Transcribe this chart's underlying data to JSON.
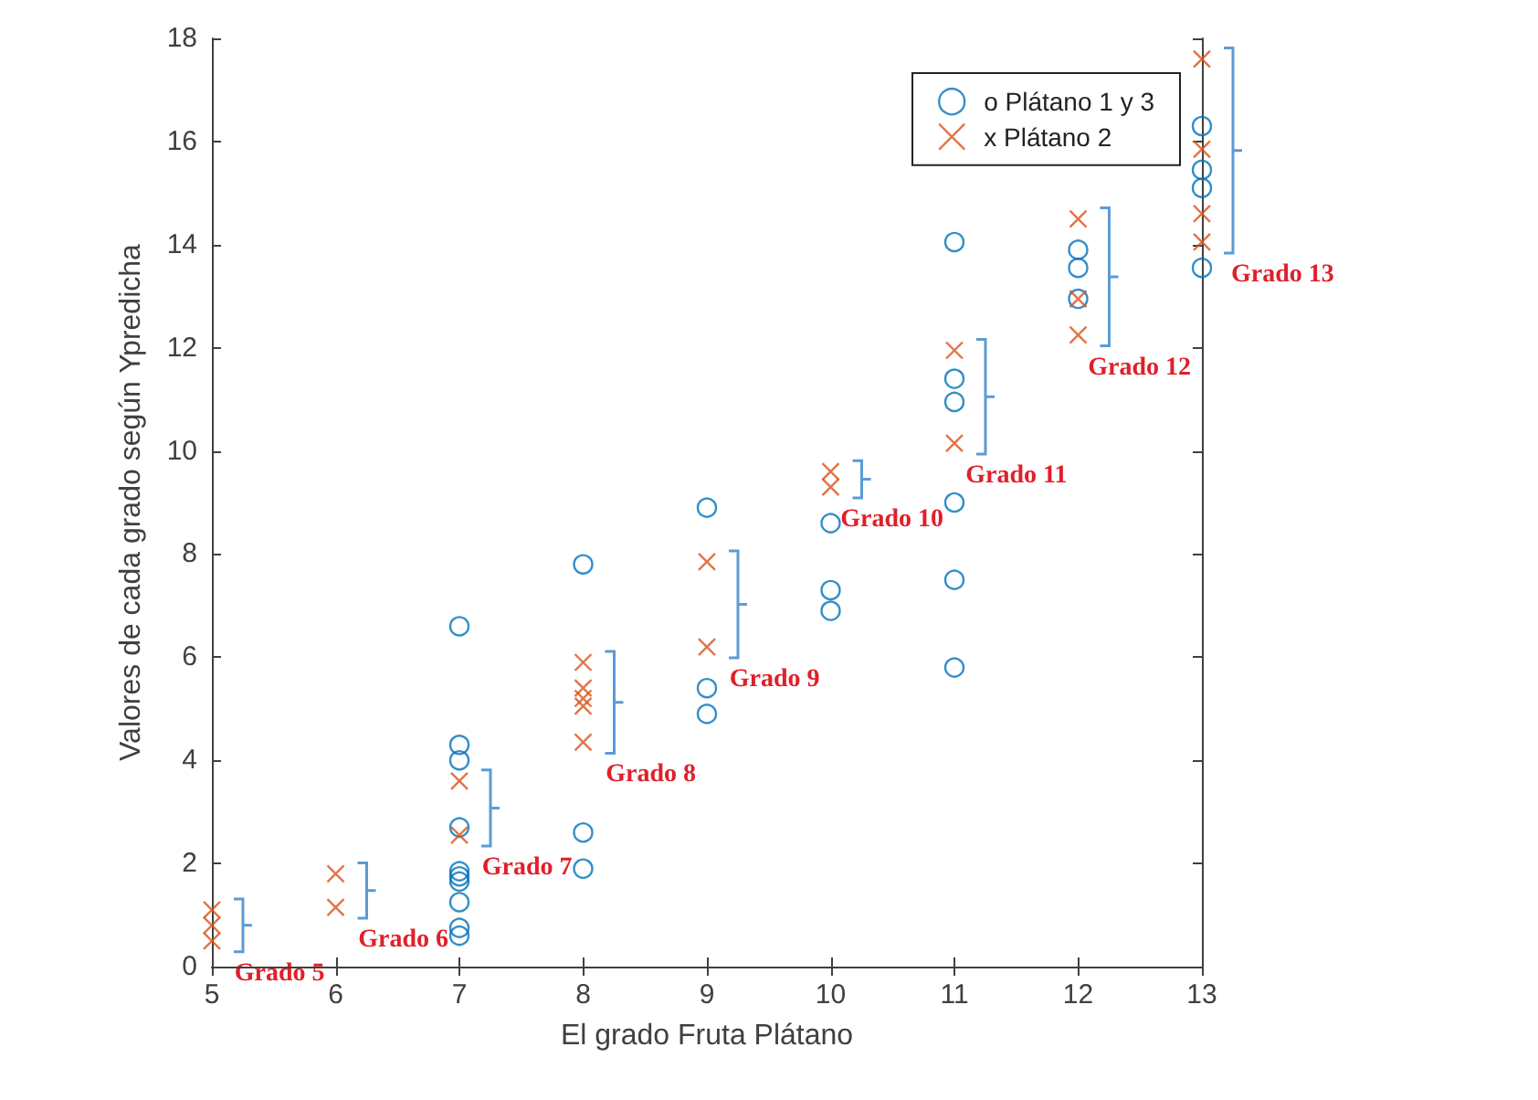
{
  "chart_data": {
    "type": "scatter",
    "xlabel": "El grado Fruta Plátano",
    "ylabel": "Valores de cada grado según Ypredicha",
    "xlim": [
      5,
      13
    ],
    "xticks": [
      5,
      6,
      7,
      8,
      9,
      10,
      11,
      12,
      13
    ],
    "ylim": [
      0,
      18
    ],
    "yticks": [
      0,
      2,
      4,
      6,
      8,
      10,
      12,
      14,
      16,
      18
    ],
    "grid": false,
    "legend": "top right",
    "series": [
      {
        "name": "o Plátano 1 y 3",
        "color": "#0072bd",
        "marker": "circle",
        "x": [
          7,
          7,
          7,
          7,
          7,
          7,
          7,
          7,
          7,
          7,
          8,
          8,
          8,
          9,
          9,
          9,
          10,
          10,
          10,
          11,
          11,
          11,
          11,
          11,
          11,
          12,
          12,
          12,
          13,
          13,
          13,
          13
        ],
        "values": [
          6.6,
          4.3,
          4.0,
          2.7,
          1.85,
          1.75,
          1.65,
          1.25,
          0.75,
          0.6,
          7.8,
          2.6,
          1.9,
          8.9,
          5.4,
          4.9,
          8.6,
          7.3,
          6.9,
          14.05,
          11.4,
          10.95,
          9.0,
          7.5,
          5.8,
          13.9,
          13.55,
          12.95,
          16.3,
          15.45,
          15.1,
          13.55
        ]
      },
      {
        "name": "x Plátano 2",
        "color": "#d95319",
        "marker": "cross",
        "x": [
          5,
          5,
          5,
          6,
          6,
          7,
          7,
          8,
          8,
          8,
          8,
          8,
          9,
          9,
          10,
          10,
          11,
          11,
          12,
          12,
          12,
          13,
          13,
          13,
          13
        ],
        "values": [
          1.1,
          0.8,
          0.5,
          1.8,
          1.15,
          3.6,
          2.55,
          5.9,
          5.4,
          5.2,
          5.05,
          4.35,
          7.85,
          6.2,
          9.6,
          9.3,
          11.95,
          10.15,
          14.5,
          12.95,
          12.25,
          17.6,
          15.85,
          14.6,
          14.05
        ]
      }
    ],
    "annotations": [
      "Grado 5",
      "Grado 6",
      "Grado 7",
      "Grado 8",
      "Grado 9",
      "Grado 10",
      "Grado 11",
      "Grado 12",
      "Grado 13"
    ]
  }
}
